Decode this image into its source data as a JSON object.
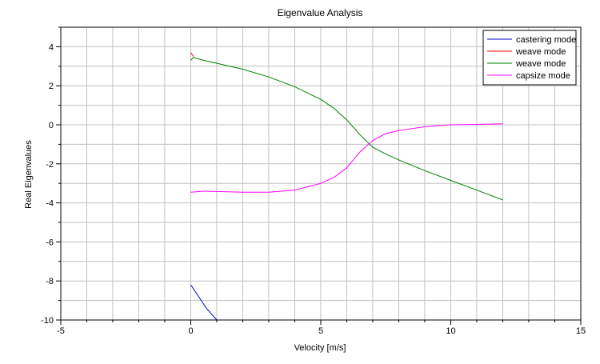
{
  "chart_data": {
    "type": "line",
    "title": "Eigenvalue Analysis",
    "xlabel": "Velocity [m/s]",
    "ylabel": "Real Eigenvalues",
    "xlim": [
      -5,
      15
    ],
    "ylim": [
      -10,
      5
    ],
    "x_ticks": [
      -5,
      0,
      5,
      10,
      15
    ],
    "y_ticks": [
      -10,
      -8,
      -6,
      -4,
      -2,
      0,
      2,
      4
    ],
    "grid": true,
    "legend_position": "top-right",
    "series": [
      {
        "name": "castering mode",
        "color": "#0000cc",
        "points": [
          [
            0,
            -8.2
          ],
          [
            0.3,
            -8.8
          ],
          [
            0.6,
            -9.4
          ],
          [
            1.0,
            -10.0
          ]
        ]
      },
      {
        "name": "weave mode",
        "color": "#ff0000",
        "points": [
          [
            0,
            3.7
          ],
          [
            0.1,
            3.5
          ]
        ]
      },
      {
        "name": "weave mode",
        "color": "#008000",
        "points": [
          [
            0,
            3.3
          ],
          [
            0.1,
            3.45
          ],
          [
            0.5,
            3.3
          ],
          [
            1,
            3.15
          ],
          [
            2,
            2.85
          ],
          [
            3,
            2.45
          ],
          [
            4,
            1.95
          ],
          [
            5,
            1.3
          ],
          [
            5.5,
            0.85
          ],
          [
            6,
            0.25
          ],
          [
            6.5,
            -0.5
          ],
          [
            7,
            -1.15
          ],
          [
            7.5,
            -1.5
          ],
          [
            8,
            -1.8
          ],
          [
            9,
            -2.35
          ],
          [
            10,
            -2.85
          ],
          [
            11,
            -3.35
          ],
          [
            12,
            -3.85
          ]
        ]
      },
      {
        "name": "capsize mode",
        "color": "#ff00ff",
        "points": [
          [
            0,
            -3.45
          ],
          [
            0.5,
            -3.4
          ],
          [
            1,
            -3.42
          ],
          [
            2,
            -3.45
          ],
          [
            3,
            -3.45
          ],
          [
            4,
            -3.35
          ],
          [
            5,
            -3.0
          ],
          [
            5.5,
            -2.7
          ],
          [
            6,
            -2.2
          ],
          [
            6.5,
            -1.4
          ],
          [
            7,
            -0.8
          ],
          [
            7.5,
            -0.45
          ],
          [
            8,
            -0.3
          ],
          [
            9,
            -0.1
          ],
          [
            10,
            0.0
          ],
          [
            11,
            0.02
          ],
          [
            12,
            0.05
          ]
        ]
      }
    ]
  }
}
